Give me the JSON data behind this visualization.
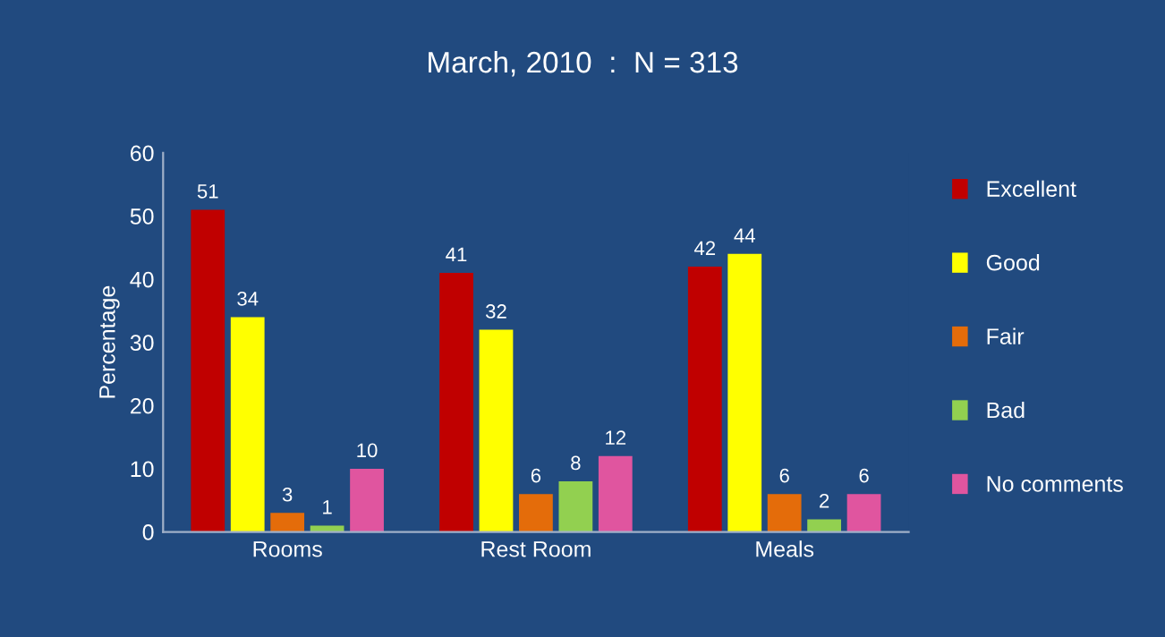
{
  "chart_data": {
    "type": "bar",
    "title": "March, 2010  :  N = 313",
    "ylabel": "Percentage",
    "categories": [
      "Rooms",
      "Rest Room",
      "Meals"
    ],
    "series": [
      {
        "name": "Excellent",
        "color": "#c00000",
        "values": [
          51,
          41,
          42
        ]
      },
      {
        "name": "Good",
        "color": "#ffff00",
        "values": [
          34,
          32,
          44
        ]
      },
      {
        "name": "Fair",
        "color": "#e46c0a",
        "values": [
          3,
          6,
          6
        ]
      },
      {
        "name": "Bad",
        "color": "#92d050",
        "values": [
          1,
          8,
          2
        ]
      },
      {
        "name": "No comments",
        "color": "#e0559f",
        "values": [
          10,
          12,
          6
        ]
      }
    ],
    "ylim": [
      0,
      60
    ],
    "yticks": [
      0,
      10,
      20,
      30,
      40,
      50,
      60
    ],
    "grid": false,
    "legend": "right",
    "data_labels": true
  }
}
